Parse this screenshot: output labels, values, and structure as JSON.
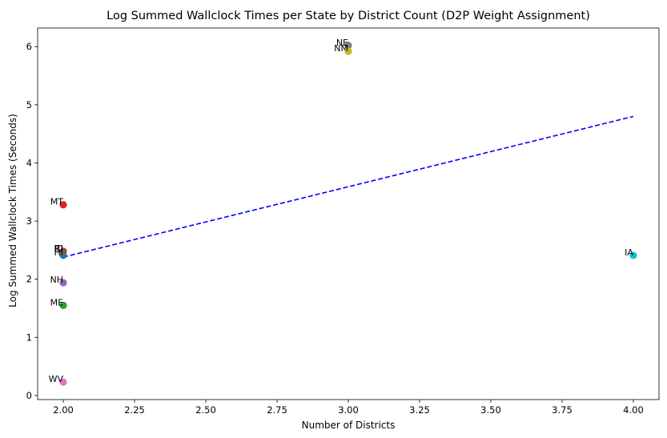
{
  "chart_data": {
    "type": "scatter",
    "title": "Log Summed Wallclock Times per State by District Count (D2P Weight Assignment)",
    "xlabel": "Number of Districts",
    "ylabel": "Log Summed Wallclock Times (Seconds)",
    "xlim": [
      1.91,
      4.09
    ],
    "ylim": [
      -0.07,
      6.32
    ],
    "xticks": [
      2.0,
      2.25,
      2.5,
      2.75,
      3.0,
      3.25,
      3.5,
      3.75,
      4.0
    ],
    "xtick_labels": [
      "2.00",
      "2.25",
      "2.50",
      "2.75",
      "3.00",
      "3.25",
      "3.50",
      "3.75",
      "4.00"
    ],
    "yticks": [
      0,
      1,
      2,
      3,
      4,
      5,
      6
    ],
    "ytick_labels": [
      "0",
      "1",
      "2",
      "3",
      "4",
      "5",
      "6"
    ],
    "grid": false,
    "points": [
      {
        "label": "HI",
        "x": 2.0,
        "y": 2.41,
        "color": "#1f77b4"
      },
      {
        "label": "RI",
        "x": 2.0,
        "y": 2.48,
        "color": "#ff7f0e"
      },
      {
        "label": "ME",
        "x": 2.0,
        "y": 1.55,
        "color": "#2ca02c"
      },
      {
        "label": "MT",
        "x": 2.0,
        "y": 3.28,
        "color": "#d62728"
      },
      {
        "label": "NH",
        "x": 2.0,
        "y": 1.94,
        "color": "#9467bd"
      },
      {
        "label": "ID",
        "x": 2.0,
        "y": 2.48,
        "color": "#8c564b"
      },
      {
        "label": "WV",
        "x": 2.0,
        "y": 0.23,
        "color": "#e377c2"
      },
      {
        "label": "NE",
        "x": 3.0,
        "y": 6.02,
        "color": "#7f7f7f"
      },
      {
        "label": "NM",
        "x": 3.0,
        "y": 5.92,
        "color": "#bcbd22"
      },
      {
        "label": "IA",
        "x": 4.0,
        "y": 2.41,
        "color": "#17becf"
      }
    ],
    "trendline": {
      "x": [
        2.0,
        4.0
      ],
      "y": [
        2.38,
        4.8
      ],
      "color": "#0000ff",
      "style": "dashed"
    }
  }
}
